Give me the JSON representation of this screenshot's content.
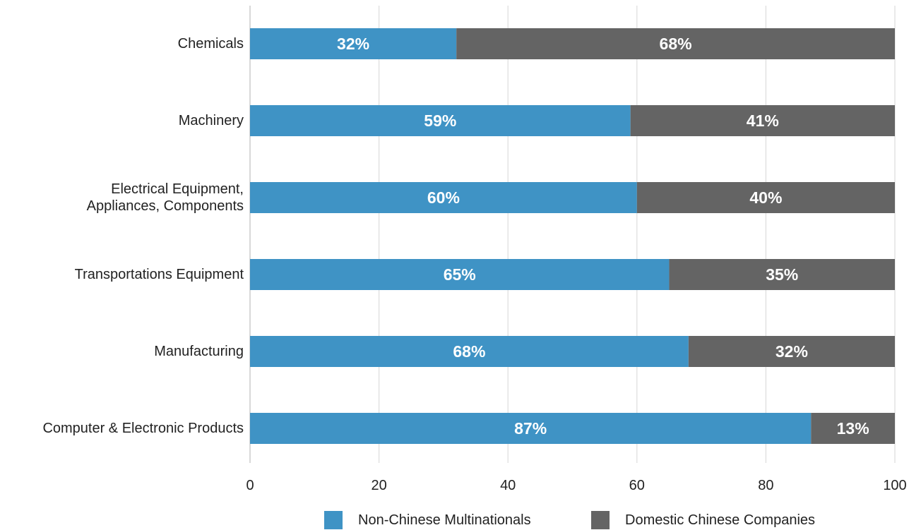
{
  "chart_data": {
    "type": "bar",
    "orientation": "horizontal",
    "stacked": true,
    "categories": [
      "Chemicals",
      "Machinery",
      "Electrical Equipment,\nAppliances, Components",
      "Transportations Equipment",
      "Manufacturing",
      "Computer & Electronic Products"
    ],
    "series": [
      {
        "name": "Non-Chinese Multinationals",
        "color": "#3f93c5",
        "values": [
          32,
          59,
          60,
          65,
          68,
          87
        ],
        "labels": [
          "32%",
          "59%",
          "60%",
          "65%",
          "68%",
          "87%"
        ]
      },
      {
        "name": "Domestic Chinese Companies",
        "color": "#646464",
        "values": [
          68,
          41,
          40,
          35,
          32,
          13
        ],
        "labels": [
          "68%",
          "41%",
          "40%",
          "35%",
          "32%",
          "13%"
        ]
      }
    ],
    "xlim": [
      0,
      100
    ],
    "xticks": [
      0,
      20,
      40,
      60,
      80,
      100
    ],
    "xtick_labels": [
      "0",
      "20",
      "40",
      "60",
      "80",
      "100"
    ],
    "grid": true,
    "legend_position": "bottom",
    "title": "",
    "xlabel": "",
    "ylabel": ""
  }
}
